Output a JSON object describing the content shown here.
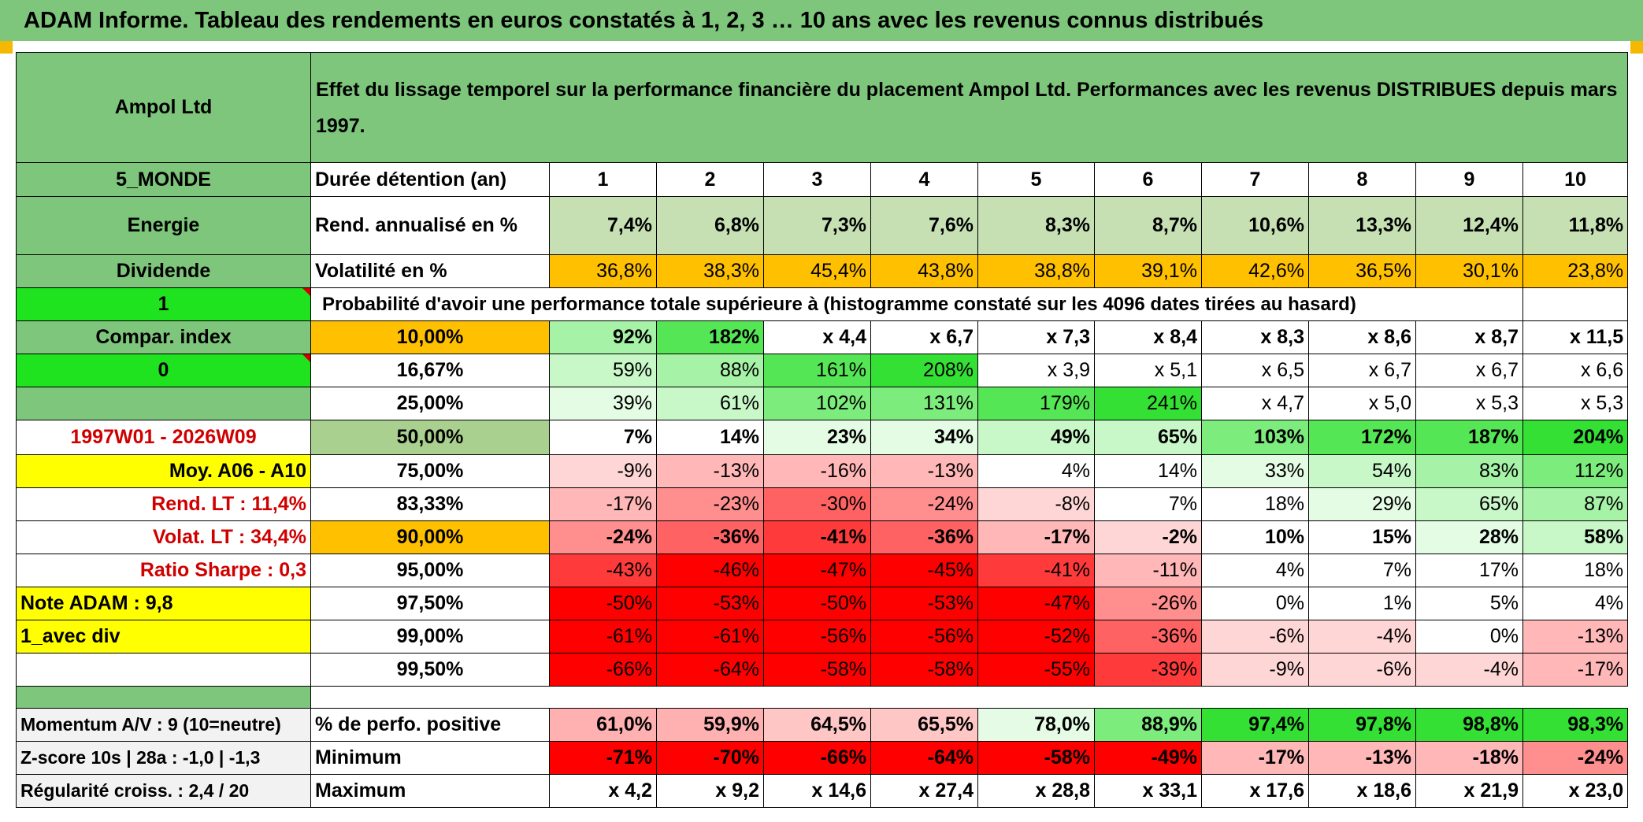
{
  "title": "ADAM Informe. Tableau des rendements en euros constatés à 1, 2, 3 … 10 ans avec les revenus connus distribués",
  "header": {
    "company": "Ampol Ltd",
    "description": "Effet du lissage temporel sur la performance financière du placement Ampol Ltd. Performances avec les revenus DISTRIBUES depuis mars 1997."
  },
  "left_labels": {
    "region": "5_MONDE",
    "sector": "Energie",
    "dividend": "Dividende",
    "one": "1",
    "compar": "Compar. index",
    "zero": "0",
    "period": "1997W01 - 2026W09",
    "moy": "Moy. A06 - A10",
    "rend_lt": "Rend. LT :   11,4%",
    "volat_lt": "Volat. LT :   34,4%",
    "sharpe": "Ratio Sharpe :    0,3",
    "note": "Note ADAM : 9,8",
    "avec_div": "1_avec div",
    "momentum": "Momentum A/V : 9 (10=neutre)",
    "zscore": "Z-score 10s | 28a : -1,0 | -1,3",
    "regularite": "Régularité croiss. : 2,4 / 20"
  },
  "years_label": "Durée détention (an)",
  "years": [
    "1",
    "2",
    "3",
    "4",
    "5",
    "6",
    "7",
    "8",
    "9",
    "10"
  ],
  "rend": {
    "label": "Rend. annualisé en %",
    "values": [
      "7,4%",
      "6,8%",
      "7,3%",
      "7,6%",
      "8,3%",
      "8,7%",
      "10,6%",
      "13,3%",
      "12,4%",
      "11,8%"
    ]
  },
  "volat": {
    "label": "Volatilité en %",
    "values": [
      "36,8%",
      "38,3%",
      "45,4%",
      "43,8%",
      "38,8%",
      "39,1%",
      "42,6%",
      "36,5%",
      "30,1%",
      "23,8%"
    ]
  },
  "proba_label": "Probabilité d'avoir une performance totale supérieure à (histogramme constaté sur les 4096 dates tirées au hasard)",
  "quantiles": [
    {
      "p": "10,00%",
      "values": [
        "92%",
        "182%",
        "x 4,4",
        "x 6,7",
        "x 7,3",
        "x 8,4",
        "x 8,3",
        "x 8,6",
        "x 8,7",
        "x 11,5"
      ]
    },
    {
      "p": "16,67%",
      "values": [
        "59%",
        "88%",
        "161%",
        "208%",
        "x 3,9",
        "x 5,1",
        "x 6,5",
        "x 6,7",
        "x 6,7",
        "x 6,6"
      ]
    },
    {
      "p": "25,00%",
      "values": [
        "39%",
        "61%",
        "102%",
        "131%",
        "179%",
        "241%",
        "x 4,7",
        "x 5,0",
        "x 5,3",
        "x 5,3"
      ]
    },
    {
      "p": "50,00%",
      "values": [
        "7%",
        "14%",
        "23%",
        "34%",
        "49%",
        "65%",
        "103%",
        "172%",
        "187%",
        "204%"
      ]
    },
    {
      "p": "75,00%",
      "values": [
        "-9%",
        "-13%",
        "-16%",
        "-13%",
        "4%",
        "14%",
        "33%",
        "54%",
        "83%",
        "112%"
      ]
    },
    {
      "p": "83,33%",
      "values": [
        "-17%",
        "-23%",
        "-30%",
        "-24%",
        "-8%",
        "7%",
        "18%",
        "29%",
        "65%",
        "87%"
      ]
    },
    {
      "p": "90,00%",
      "values": [
        "-24%",
        "-36%",
        "-41%",
        "-36%",
        "-17%",
        "-2%",
        "10%",
        "15%",
        "28%",
        "58%"
      ]
    },
    {
      "p": "95,00%",
      "values": [
        "-43%",
        "-46%",
        "-47%",
        "-45%",
        "-41%",
        "-11%",
        "4%",
        "7%",
        "17%",
        "18%"
      ]
    },
    {
      "p": "97,50%",
      "values": [
        "-50%",
        "-53%",
        "-50%",
        "-53%",
        "-47%",
        "-26%",
        "0%",
        "1%",
        "5%",
        "4%"
      ]
    },
    {
      "p": "99,00%",
      "values": [
        "-61%",
        "-61%",
        "-56%",
        "-56%",
        "-52%",
        "-36%",
        "-6%",
        "-4%",
        "0%",
        "-13%"
      ]
    },
    {
      "p": "99,50%",
      "values": [
        "-66%",
        "-64%",
        "-58%",
        "-58%",
        "-55%",
        "-39%",
        "-9%",
        "-6%",
        "-4%",
        "-17%"
      ]
    }
  ],
  "stats": [
    {
      "label": "% de perfo. positive",
      "values": [
        "61,0%",
        "59,9%",
        "64,5%",
        "65,5%",
        "78,0%",
        "88,9%",
        "97,4%",
        "97,8%",
        "98,8%",
        "98,3%"
      ]
    },
    {
      "label": "Minimum",
      "values": [
        "-71%",
        "-70%",
        "-66%",
        "-64%",
        "-58%",
        "-49%",
        "-17%",
        "-13%",
        "-18%",
        "-24%"
      ]
    },
    {
      "label": "Maximum",
      "values": [
        "x 4,2",
        "x 9,2",
        "x 14,6",
        "x 27,4",
        "x 28,8",
        "x 33,1",
        "x 17,6",
        "x 18,6",
        "x 21,9",
        "x 23,0"
      ]
    }
  ],
  "colors": {
    "header_green": "#7dc67b",
    "bright_green": "#1ee31e",
    "yellow": "#ffff00",
    "orange": "#ffc000",
    "rend_green": "#c6e0b4",
    "label_red": "#d00000",
    "neg_red": "#ff0000",
    "pos_green": "#33e033"
  }
}
